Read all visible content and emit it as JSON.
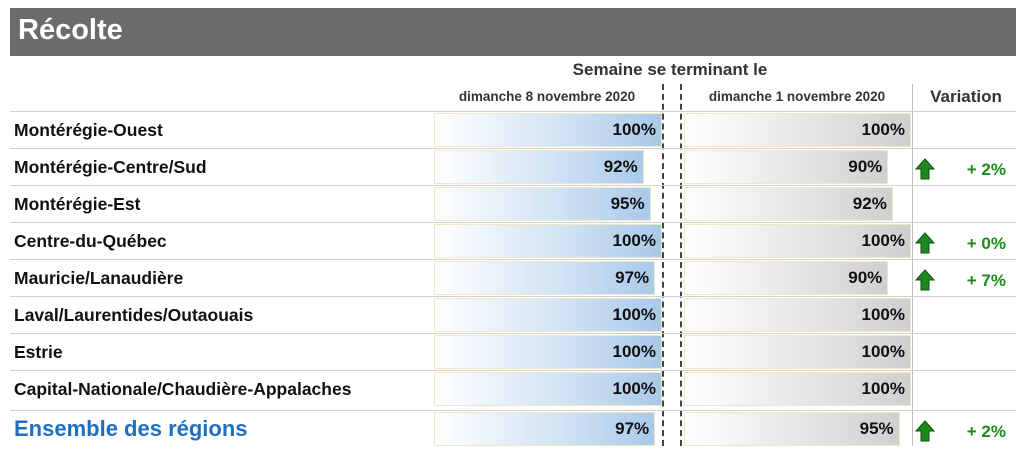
{
  "title": "Récolte",
  "week_header": "Semaine se terminant le",
  "columns": {
    "current": "dimanche 8 novembre 2020",
    "previous": "dimanche 1 novembre 2020",
    "variation": "Variation"
  },
  "colors": {
    "title_bar": "#6b6b6b",
    "current_bar": "#a9c9ea",
    "previous_bar": "#cfcfcf",
    "variation_up": "#1e8a1e",
    "total_label": "#1f6fbf"
  },
  "chart_data": {
    "type": "bar",
    "categories": [
      "Montérégie-Ouest",
      "Montérégie-Centre/Sud",
      "Montérégie-Est",
      "Centre-du-Québec",
      "Mauricie/Lanaudière",
      "Laval/Laurentides/Outaouais",
      "Estrie",
      "Capital-Nationale/Chaudière-Appalaches",
      "Ensemble des régions"
    ],
    "series": [
      {
        "name": "dimanche 8 novembre 2020",
        "values": [
          100,
          92,
          95,
          100,
          97,
          100,
          100,
          100,
          97
        ]
      },
      {
        "name": "dimanche 1 novembre 2020",
        "values": [
          100,
          90,
          92,
          100,
          90,
          100,
          100,
          100,
          95
        ]
      }
    ],
    "value_labels_current": [
      "100%",
      "92%",
      "95%",
      "100%",
      "97%",
      "100%",
      "100%",
      "100%",
      "97%"
    ],
    "value_labels_previous": [
      "100%",
      "90%",
      "92%",
      "100%",
      "90%",
      "100%",
      "100%",
      "100%",
      "95%"
    ],
    "variation": [
      "",
      "+ 2%",
      "",
      "+ 0%",
      "+ 7%",
      "",
      "",
      "",
      "+ 2%"
    ],
    "variation_icon": [
      "",
      "up-arrow-icon",
      "",
      "up-arrow-icon",
      "up-arrow-icon",
      "",
      "",
      "",
      "up-arrow-icon"
    ],
    "xlim": [
      0,
      100
    ]
  }
}
